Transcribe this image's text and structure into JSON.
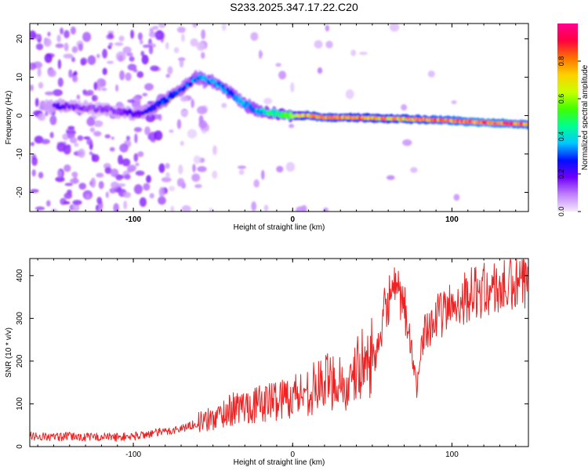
{
  "title": "S233.2025.347.17.22.C20",
  "chart_data": [
    {
      "type": "heatmap",
      "xlabel": "Height of straight line (km)",
      "ylabel": "Frequency (Hz)",
      "xlim": [
        -165,
        148
      ],
      "ylim": [
        -25,
        24
      ],
      "xticks": [
        -100,
        0,
        100
      ],
      "yticks": [
        -20,
        -10,
        0,
        10,
        20
      ],
      "colorbar": {
        "label": "Normalized spectral amplitude",
        "range": [
          0,
          1
        ],
        "ticks": [
          "0.0",
          "0.2",
          "0.4",
          "0.6",
          "0.8"
        ],
        "tick_values": [
          0,
          0.2,
          0.4,
          0.6,
          0.8
        ],
        "colors": [
          "#f4eafc",
          "#c080ff",
          "#7000ff",
          "#0010ff",
          "#00c8ff",
          "#00ff90",
          "#40ff00",
          "#c8ff00",
          "#ffd000",
          "#ff7000",
          "#ff0040",
          "#ff0090"
        ]
      },
      "ridge": {
        "x": [
          -145,
          -130,
          -115,
          -100,
          -90,
          -80,
          -70,
          -60,
          -50,
          -40,
          -30,
          -20,
          -10,
          0,
          10,
          20,
          40,
          60,
          80,
          100,
          120,
          148
        ],
        "y": [
          2.5,
          2.0,
          1.5,
          0.5,
          1.5,
          4.0,
          7.0,
          10.0,
          9.0,
          6.0,
          3.0,
          1.0,
          0.5,
          0.0,
          0.0,
          -0.5,
          -0.5,
          -0.8,
          -1.0,
          -1.3,
          -1.8,
          -2.3
        ],
        "amplitude": [
          0.2,
          0.15,
          0.15,
          0.2,
          0.25,
          0.3,
          0.3,
          0.35,
          0.35,
          0.35,
          0.35,
          0.4,
          0.5,
          0.6,
          0.85,
          0.85,
          0.8,
          0.8,
          0.85,
          0.9,
          0.95,
          0.9
        ]
      }
    },
    {
      "type": "line",
      "xlabel": "Height of straight line (km)",
      "ylabel": "SNR (10 * v/v)",
      "xlim": [
        -165,
        148
      ],
      "ylim": [
        0,
        440
      ],
      "xticks": [
        -100,
        0,
        100
      ],
      "yticks": [
        0,
        100,
        200,
        300,
        400
      ],
      "series": [
        {
          "name": "SNR",
          "color": "#ee2222",
          "x": [
            -165,
            -150,
            -140,
            -130,
            -120,
            -110,
            -100,
            -90,
            -80,
            -70,
            -60,
            -50,
            -40,
            -30,
            -20,
            -10,
            0,
            10,
            20,
            30,
            35,
            40,
            50,
            55,
            58,
            62,
            66,
            70,
            74,
            76,
            78,
            80,
            84,
            90,
            100,
            110,
            120,
            130,
            140,
            148
          ],
          "values": [
            25,
            22,
            24,
            22,
            23,
            22,
            24,
            30,
            35,
            42,
            55,
            65,
            85,
            95,
            100,
            110,
            120,
            130,
            150,
            160,
            120,
            180,
            210,
            230,
            330,
            360,
            350,
            330,
            240,
            190,
            120,
            240,
            280,
            300,
            330,
            355,
            365,
            370,
            375,
            380
          ]
        }
      ]
    }
  ]
}
